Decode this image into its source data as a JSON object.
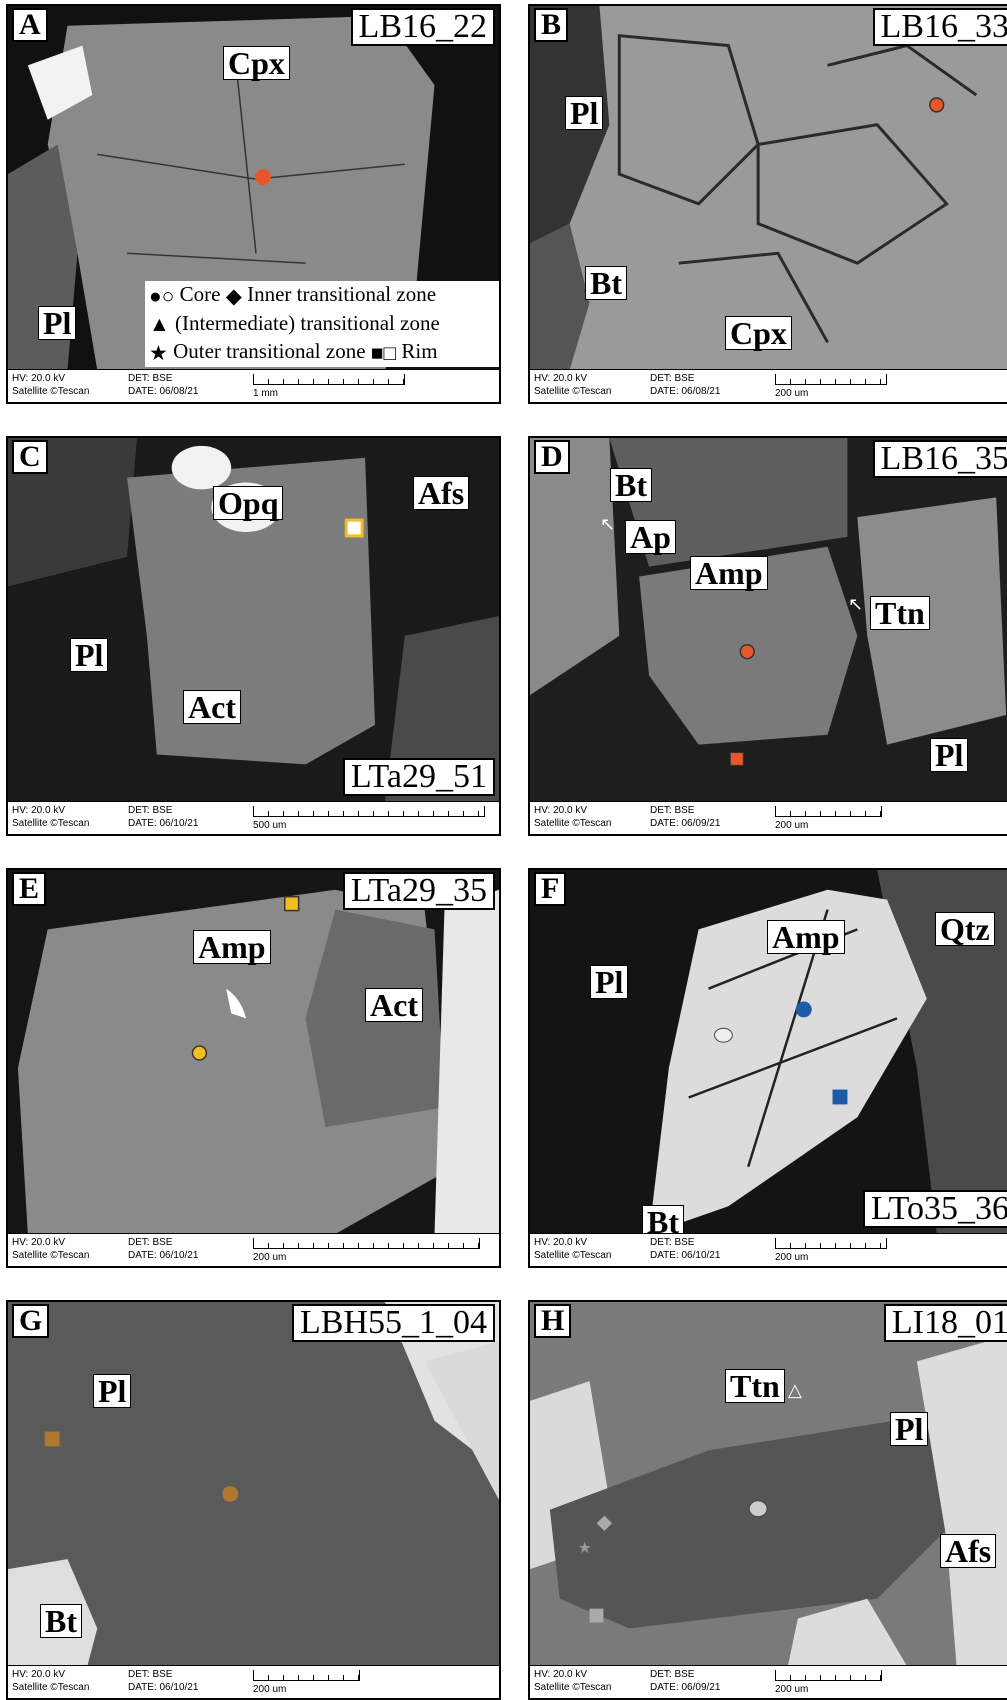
{
  "footer": {
    "hv": "HV: 20.0 kV",
    "brand": "Satellite ©Tescan",
    "det": "DET: BSE"
  },
  "legend": {
    "core": "Core",
    "inner": "Inner transitional zone",
    "intermediate": "(Intermediate) transitional zone",
    "outer": "Outer transitional zone",
    "rim": "Rim"
  },
  "panels": [
    {
      "letter": "A",
      "code": "LB16_22",
      "date": "DATE: 06/08/21",
      "scale": "1 mm",
      "minerals": [
        "Cpx",
        "Pl"
      ]
    },
    {
      "letter": "B",
      "code": "LB16_33",
      "date": "DATE: 06/08/21",
      "scale": "200 um",
      "minerals": [
        "Pl",
        "Bt",
        "Cpx"
      ]
    },
    {
      "letter": "C",
      "code": "LTa29_51",
      "date": "DATE: 06/10/21",
      "scale": "500 um",
      "minerals": [
        "Opq",
        "Afs",
        "Pl",
        "Act"
      ]
    },
    {
      "letter": "D",
      "code": "LB16_35",
      "date": "DATE: 06/09/21",
      "scale": "200 um",
      "minerals": [
        "Bt",
        "Ap",
        "Amp",
        "Ttn",
        "Pl"
      ]
    },
    {
      "letter": "E",
      "code": "LTa29_35",
      "date": "DATE: 06/10/21",
      "scale": "200 um",
      "minerals": [
        "Amp",
        "Act"
      ]
    },
    {
      "letter": "F",
      "code": "LTo35_36",
      "date": "DATE: 06/10/21",
      "scale": "200 um",
      "minerals": [
        "Amp",
        "Qtz",
        "Pl",
        "Bt"
      ]
    },
    {
      "letter": "G",
      "code": "LBH55_1_04",
      "date": "DATE: 06/10/21",
      "scale": "200 um",
      "minerals": [
        "Pl",
        "Bt"
      ]
    },
    {
      "letter": "H",
      "code": "LI18_01",
      "date": "DATE: 06/09/21",
      "scale": "200 um",
      "minerals": [
        "Ttn",
        "Pl",
        "Afs"
      ]
    }
  ],
  "colors": {
    "orange": "#e8562a",
    "yellow": "#f2bd1d",
    "blue": "#1f5aa6",
    "brown": "#b0782e",
    "gray_marker": "#c8c8c8"
  }
}
